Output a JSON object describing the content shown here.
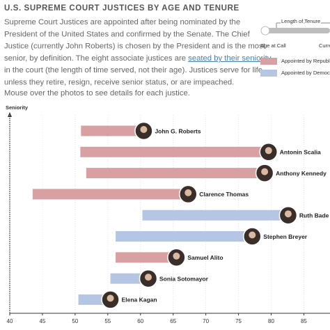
{
  "header": {
    "title": "U.S. SUPREME COURT JUSTICES BY AGE AND TENURE",
    "intro": [
      "Supreme Court Justices are appointed after being nominated by the",
      "President of the United States and confirmed by the Senate. The Chief",
      "Justice (currently John Roberts) is chosen by the President and is the most",
      "senior, by definition. The eight associate justices are",
      "in the court (the length of time served, not their age). Justices serve for life",
      "unless they retire, resign, receive senior status, or are impeached."
    ],
    "link": "seated by their seniority",
    "hint": "Mouse over the photos to see details for each justice."
  },
  "legend": {
    "tenure_title": "Length of Tenure",
    "start_label": "Age at Call",
    "end_label": "Curre"
  },
  "chart_data": {
    "type": "range_bar",
    "y_label": "Seniority",
    "categories": [
      "John G. Roberts",
      "Antonin Scalia",
      "Anthony Kennedy",
      "Clarence Thomas",
      "Ruth Bade",
      "Stephen Breyer",
      "Samuel Alito",
      "Sonia Sotomayor",
      "Elena Kagan"
    ],
    "start": [
      50.9,
      50.8,
      51.7,
      43.5,
      60.3,
      56.2,
      56.2,
      55.4,
      50.5
    ],
    "end": [
      60.5,
      79.6,
      79,
      67.3,
      82.6,
      77.1,
      65.5,
      61.2,
      55.4
    ],
    "series": [
      {
        "name": "Appointed by Republic",
        "color": "#d9a0a3"
      },
      {
        "name": "Appointed by Democra",
        "color": "#b4c6e4"
      }
    ],
    "series_index": [
      0,
      0,
      0,
      0,
      1,
      1,
      0,
      1,
      1
    ],
    "xlim": [
      40,
      89
    ],
    "xticks": [
      40,
      45,
      50,
      55,
      60,
      65,
      70,
      75,
      80,
      85
    ],
    "grid": true
  }
}
